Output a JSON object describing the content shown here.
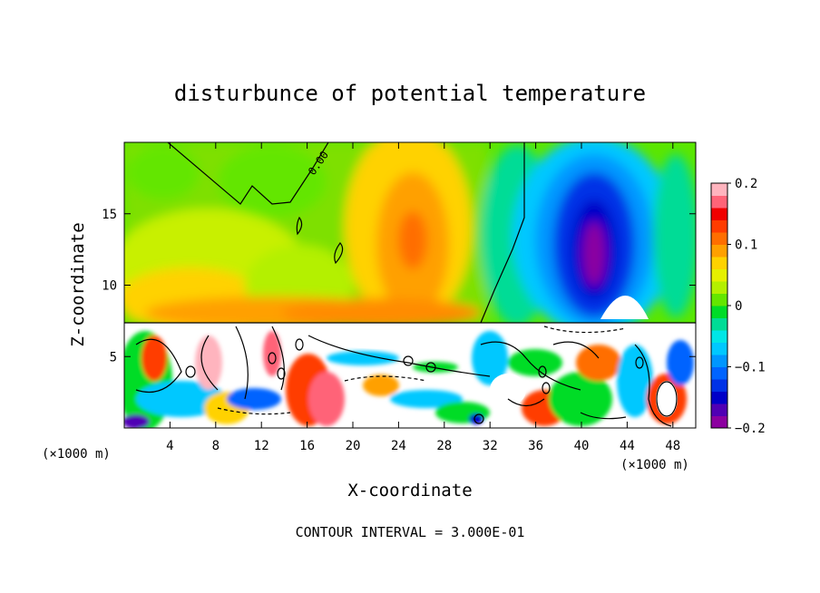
{
  "chart_data": {
    "type": "heatmap",
    "title": "disturbunce of potential temperature",
    "xlabel": "X-coordinate",
    "ylabel": "Z-coordinate",
    "x_unit_left": "(×1000 m)",
    "x_unit_right": "(×1000 m)",
    "xlim": [
      0,
      50
    ],
    "ylim": [
      0,
      20
    ],
    "x_ticks": [
      4,
      8,
      12,
      16,
      20,
      24,
      28,
      32,
      36,
      40,
      44,
      48
    ],
    "y_ticks": [
      5,
      10,
      15
    ],
    "colorbar": {
      "range": [
        -0.2,
        0.2
      ],
      "ticks": [
        {
          "value": 0.2,
          "label": "0.2"
        },
        {
          "value": 0.1,
          "label": "0.1"
        },
        {
          "value": 0,
          "label": "0"
        },
        {
          "value": -0.1,
          "label": "−0.1"
        },
        {
          "value": -0.2,
          "label": "−0.2"
        }
      ],
      "colors": [
        "#8c00a0",
        "#5000b4",
        "#0000c8",
        "#0032e6",
        "#0064ff",
        "#0096ff",
        "#00c8ff",
        "#00e6e6",
        "#00dc96",
        "#00dc28",
        "#64e600",
        "#b4f000",
        "#e6f000",
        "#ffd200",
        "#ffa000",
        "#ff6e00",
        "#ff3c00",
        "#f00000",
        "#ff6478",
        "#ffb4be"
      ]
    },
    "contour_label": "0.00",
    "annotation": "CONTOUR INTERVAL = 3.000E-01"
  }
}
